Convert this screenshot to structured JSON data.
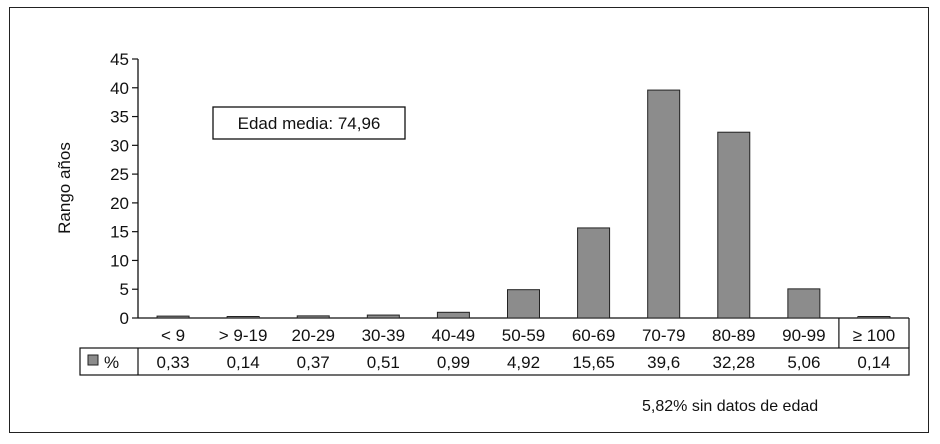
{
  "chart_data": {
    "type": "bar",
    "ylabel": "Rango años",
    "ylim": [
      0,
      45
    ],
    "yticks": [
      0,
      5,
      10,
      15,
      20,
      25,
      30,
      35,
      40,
      45
    ],
    "categories": [
      "< 9",
      "> 9-19",
      "20-29",
      "30-39",
      "40-49",
      "50-59",
      "60-69",
      "70-79",
      "80-89",
      "90-99",
      "≥ 100"
    ],
    "series": [
      {
        "name": "%",
        "values": [
          0.33,
          0.14,
          0.37,
          0.51,
          0.99,
          4.92,
          15.65,
          39.6,
          32.28,
          5.06,
          0.14
        ],
        "value_labels": [
          "0,33",
          "0,14",
          "0,37",
          "0,51",
          "0,99",
          "4,92",
          "15,65",
          "39,6",
          "32,28",
          "5,06",
          "0,14"
        ],
        "color": "#8c8c8c"
      }
    ],
    "annotation": "Edad media: 74,96",
    "note": "5,82% sin datos de edad",
    "grid": false
  }
}
